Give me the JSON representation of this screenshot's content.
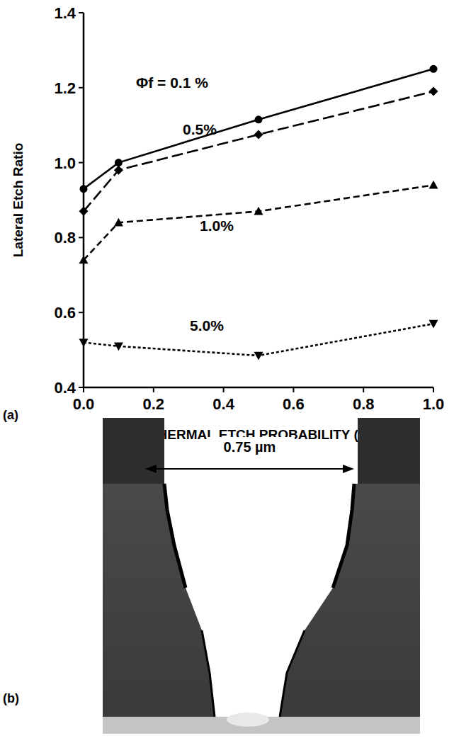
{
  "chart_data": {
    "type": "line",
    "x_label": "THERMAL ETCH PROBABILITY (%)",
    "y_label": "Lateral Etch Ratio",
    "x": [
      0,
      0.1,
      0.5,
      1.0
    ],
    "xlim": [
      0,
      1
    ],
    "xticks": [
      {
        "value": 0,
        "label": "0.0"
      },
      0.2,
      0.4,
      0.6,
      0.8,
      {
        "value": 1,
        "label": "1.0"
      }
    ],
    "ylim": [
      0.4,
      1.4
    ],
    "yticks": [
      0.4,
      0.6,
      0.8,
      {
        "value": 1,
        "label": "1.0"
      },
      1.2,
      1.4
    ],
    "grid": false,
    "series": [
      {
        "name": "Φf = 0.1 %",
        "color": "#000000",
        "marker": "circle",
        "line_style": "solid",
        "values": [
          0.93,
          1.0,
          1.115,
          1.25
        ]
      },
      {
        "name": "0.5%",
        "color": "#000000",
        "marker": "diamond",
        "line_style": "long_dash",
        "values": [
          0.87,
          0.98,
          1.075,
          1.19
        ]
      },
      {
        "name": "1.0%",
        "color": "#000000",
        "marker": "triangle_up",
        "line_style": "dashed",
        "values": [
          0.74,
          0.84,
          0.87,
          0.94
        ]
      },
      {
        "name": "5.0%",
        "color": "#000000",
        "marker": "triangle_down",
        "line_style": "short_dash",
        "values": [
          0.52,
          0.51,
          0.485,
          0.57
        ]
      }
    ]
  },
  "figure": {
    "panel_labels": [
      "(a)",
      "(b)"
    ],
    "dimension_label": "0.75 µm"
  }
}
